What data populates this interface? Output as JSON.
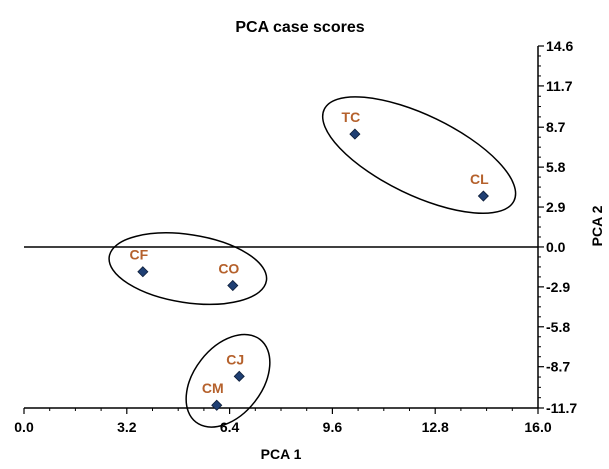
{
  "chart_data": {
    "type": "scatter",
    "title": "PCA case scores",
    "xlabel": "PCA 1",
    "ylabel": "PCA 2",
    "xlim": [
      0.0,
      16.0
    ],
    "ylim": [
      -11.7,
      14.6
    ],
    "x_ticks": [
      0.0,
      3.2,
      6.4,
      9.6,
      12.8,
      16.0
    ],
    "x_tick_labels": [
      "0.0",
      "3.2",
      "6.4",
      "9.6",
      "12.8",
      "16.0"
    ],
    "y_ticks": [
      14.6,
      11.7,
      8.7,
      5.8,
      2.9,
      0.0,
      -2.9,
      -5.8,
      -8.7,
      -11.7
    ],
    "y_tick_labels": [
      "14.6",
      "11.7",
      "8.7",
      "5.8",
      "2.9",
      "0.0",
      "-2.9",
      "-5.8",
      "-8.7",
      "-11.7"
    ],
    "y_axis_position": "right",
    "zero_line": true,
    "grid": false,
    "points": [
      {
        "label": "TC",
        "x": 10.3,
        "y": 8.2
      },
      {
        "label": "CL",
        "x": 14.3,
        "y": 3.7
      },
      {
        "label": "CF",
        "x": 3.7,
        "y": -1.8
      },
      {
        "label": "CO",
        "x": 6.5,
        "y": -2.8
      },
      {
        "label": "CJ",
        "x": 6.7,
        "y": -9.4
      },
      {
        "label": "CM",
        "x": 6.0,
        "y": -11.5
      }
    ],
    "groups": [
      {
        "members": [
          "TC",
          "CL"
        ]
      },
      {
        "members": [
          "CF",
          "CO"
        ]
      },
      {
        "members": [
          "CJ",
          "CM"
        ]
      }
    ],
    "colors": {
      "marker_fill": "#1F3F73",
      "marker_stroke": "#0d1d38",
      "point_label": "#B5612C",
      "axis": "#000000",
      "text": "#000000"
    }
  }
}
